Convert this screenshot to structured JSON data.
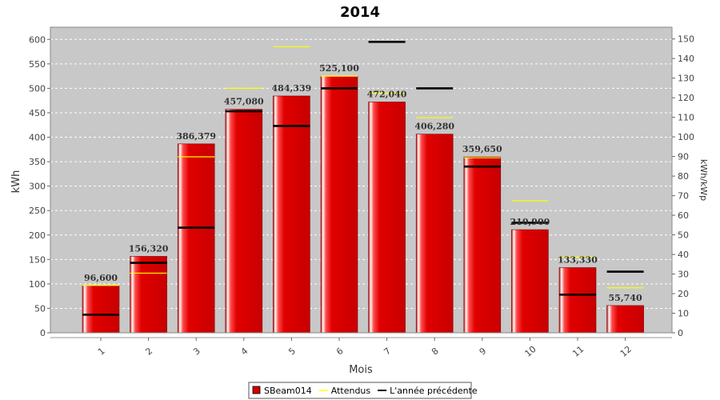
{
  "chart_data": {
    "type": "bar",
    "title": "2014",
    "xlabel": "Mois",
    "ylabel": "kWh",
    "y2label": "kWh/kWp",
    "ylim": [
      0,
      625
    ],
    "y2lim": [
      0,
      156
    ],
    "yticks": [
      0,
      50,
      100,
      150,
      200,
      250,
      300,
      350,
      400,
      450,
      500,
      550,
      600
    ],
    "y2ticks": [
      0,
      10,
      20,
      30,
      40,
      50,
      60,
      70,
      80,
      90,
      100,
      110,
      120,
      130,
      140,
      150
    ],
    "grid": true,
    "legend_position": "bottom",
    "categories": [
      "1",
      "2",
      "3",
      "4",
      "5",
      "6",
      "7",
      "8",
      "9",
      "10",
      "11",
      "12"
    ],
    "series": [
      {
        "name": "SBeam014",
        "kind": "bar",
        "color": "#dd0000",
        "values": [
          96.6,
          156.32,
          386.379,
          457.08,
          484.339,
          525.1,
          472.04,
          406.28,
          359.65,
          210.9,
          133.33,
          55.74
        ],
        "labels": [
          "96,600",
          "156,320",
          "386,379",
          "457,080",
          "484,339",
          "525,100",
          "472,040",
          "406,280",
          "359,650",
          "210,900",
          "133,330",
          "55,740"
        ]
      },
      {
        "name": "Attendus",
        "kind": "marker",
        "color": "#ffff00",
        "values": [
          97,
          122,
          360,
          500,
          585,
          525,
          490,
          440,
          358,
          270,
          155,
          92
        ]
      },
      {
        "name": "L'année précédente",
        "kind": "marker",
        "color": "#000000",
        "values": [
          37,
          143,
          215,
          453,
          423,
          500,
          595,
          500,
          340,
          225,
          78,
          125
        ]
      }
    ]
  }
}
